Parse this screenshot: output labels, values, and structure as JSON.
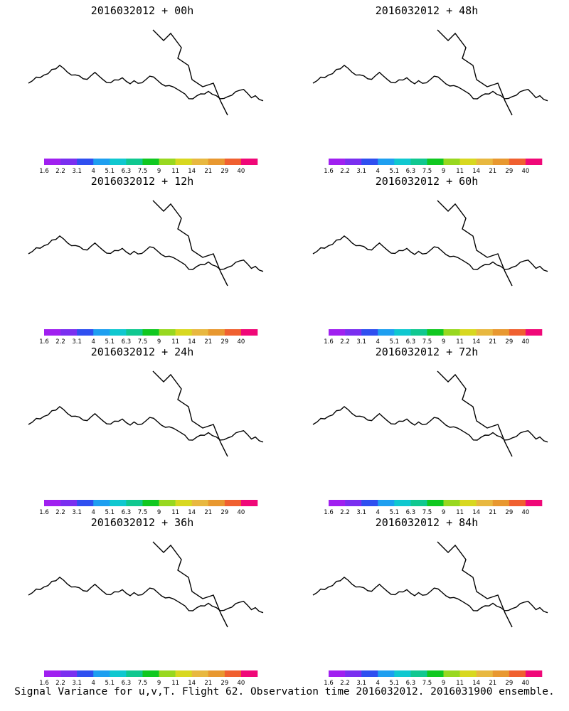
{
  "chart_data": {
    "type": "heatmap",
    "caption": "Signal Variance for u,v,T. Flight 62. Observation time 2016032012. 2016031900 ensemble.",
    "colorbar": {
      "levels": [
        "1.6",
        "2.2",
        "3.1",
        "4",
        "5.1",
        "6.3",
        "7.5",
        "9",
        "11",
        "14",
        "21",
        "29",
        "40"
      ],
      "colors": [
        "#a020f0",
        "#7a2ff0",
        "#2f4ff0",
        "#1e9ff0",
        "#10c8d0",
        "#10c890",
        "#10c820",
        "#98d820",
        "#d8d820",
        "#e8b840",
        "#e89830",
        "#f06030",
        "#f00878"
      ]
    },
    "panels": [
      {
        "title": "2016032012 + 00h",
        "lead_h": 0,
        "max_level": "40"
      },
      {
        "title": "2016032012 + 12h",
        "lead_h": 12,
        "max_level": "7.5"
      },
      {
        "title": "2016032012 + 24h",
        "lead_h": 24,
        "max_level": "11"
      },
      {
        "title": "2016032012 + 36h",
        "lead_h": 36,
        "max_level": "11"
      },
      {
        "title": "2016032012 + 48h",
        "lead_h": 48,
        "max_level": "21"
      },
      {
        "title": "2016032012 + 60h",
        "lead_h": 60,
        "max_level": "21"
      },
      {
        "title": "2016032012 + 72h",
        "lead_h": 72,
        "max_level": "14"
      },
      {
        "title": "2016032012 + 84h",
        "lead_h": 84,
        "max_level": "14"
      }
    ]
  }
}
